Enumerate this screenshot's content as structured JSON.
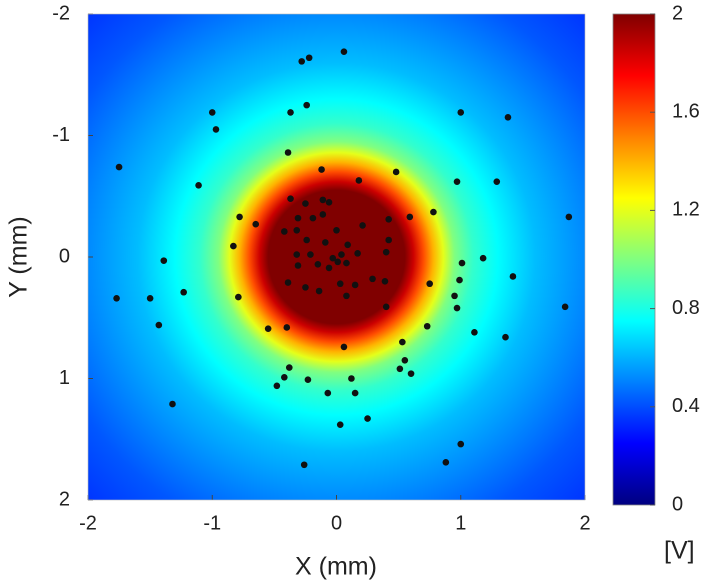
{
  "chart_data": {
    "type": "heatmap-scatter",
    "xlabel": "X (mm)",
    "ylabel": "Y (mm)",
    "colorbar_label": "[V]",
    "xlim": [
      -2,
      2
    ],
    "xticks": [
      -2,
      -1,
      0,
      1,
      2
    ],
    "ylim": [
      2,
      -2
    ],
    "yticks": [
      -2,
      -1,
      0,
      1,
      2
    ],
    "clim": [
      0,
      2
    ],
    "cticks": [
      0,
      0.4,
      0.8,
      1.2,
      1.6,
      2
    ],
    "colormap": "jet",
    "field": {
      "r": [
        0,
        0.55,
        0.62,
        0.7,
        0.78,
        0.86,
        0.95,
        1.1,
        1.3,
        1.6,
        2.0,
        2.4,
        2.85
      ],
      "values": [
        2,
        2,
        1.85,
        1.6,
        1.4,
        1.2,
        1.0,
        0.85,
        0.75,
        0.62,
        0.52,
        0.42,
        0.35
      ]
    },
    "points": {
      "color": "#111111",
      "x": [
        0.06,
        -0.22,
        -0.28,
        -1.0,
        -0.37,
        -0.24,
        -0.97,
        1.0,
        1.38,
        -1.75,
        -0.39,
        -1.11,
        -0.12,
        0.18,
        0.48,
        0.97,
        1.29,
        1.87,
        -0.37,
        -0.25,
        -0.11,
        -0.06,
        -0.78,
        -0.11,
        -0.19,
        -0.31,
        0.42,
        0.59,
        0.78,
        -0.65,
        0.21,
        -0.32,
        0.0,
        -0.42,
        -0.24,
        -0.09,
        0.42,
        -0.83,
        0.09,
        -0.32,
        -0.21,
        0.04,
        0.17,
        0.4,
        -0.03,
        0.01,
        0.08,
        -0.15,
        -0.06,
        -0.31,
        -1.39,
        1.01,
        1.18,
        1.42,
        0.75,
        -0.39,
        -0.25,
        -0.14,
        0.03,
        0.15,
        0.29,
        0.39,
        0.99,
        -1.23,
        -1.77,
        -1.5,
        -0.79,
        0.08,
        0.95,
        0.4,
        0.97,
        1.84,
        -1.43,
        -0.55,
        -0.4,
        0.73,
        1.11,
        1.36,
        0.06,
        0.53,
        0.55,
        0.51,
        0.6,
        -0.38,
        -0.42,
        -0.48,
        -0.23,
        0.12,
        -0.07,
        0.15,
        -1.32,
        0.25,
        0.03,
        1.0,
        0.88,
        -0.26
      ],
      "y": [
        -1.69,
        -1.64,
        -1.61,
        -1.19,
        -1.19,
        -1.25,
        -1.05,
        -1.19,
        -1.15,
        -0.74,
        -0.86,
        -0.59,
        -0.72,
        -0.63,
        -0.7,
        -0.62,
        -0.62,
        -0.33,
        -0.48,
        -0.44,
        -0.47,
        -0.45,
        -0.33,
        -0.35,
        -0.32,
        -0.32,
        -0.31,
        -0.33,
        -0.37,
        -0.27,
        -0.26,
        -0.22,
        -0.22,
        -0.21,
        -0.14,
        -0.12,
        -0.14,
        -0.09,
        -0.1,
        -0.02,
        -0.02,
        -0.02,
        -0.03,
        -0.04,
        0.01,
        0.04,
        0.05,
        0.06,
        0.09,
        0.07,
        0.03,
        0.05,
        0.01,
        0.16,
        0.22,
        0.21,
        0.25,
        0.28,
        0.22,
        0.23,
        0.18,
        0.2,
        0.19,
        0.29,
        0.34,
        0.34,
        0.33,
        0.32,
        0.32,
        0.41,
        0.42,
        0.41,
        0.56,
        0.59,
        0.58,
        0.57,
        0.62,
        0.66,
        0.74,
        0.7,
        0.85,
        0.92,
        0.96,
        0.91,
        0.99,
        1.06,
        1.01,
        1.0,
        1.12,
        1.12,
        1.21,
        1.33,
        1.38,
        1.54,
        1.69,
        1.71
      ]
    }
  }
}
